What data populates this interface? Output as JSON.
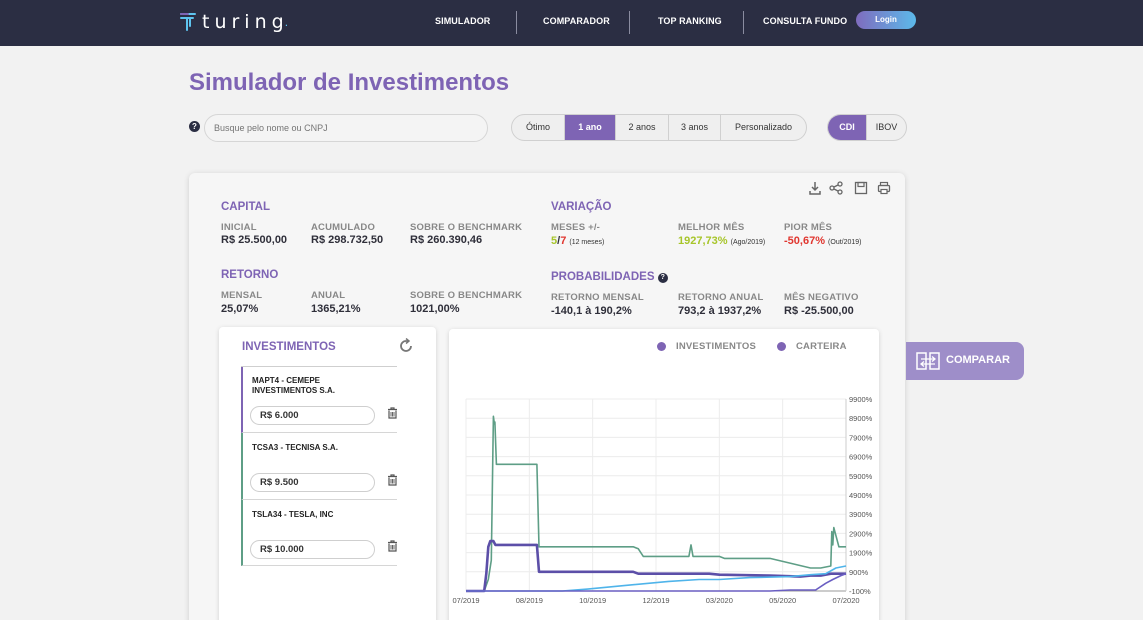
{
  "header": {
    "brand": "turing",
    "brand_dot": ".",
    "nav": [
      "SIMULADOR",
      "COMPARADOR",
      "TOP RANKING",
      "CONSULTA FUNDO"
    ],
    "login": "Login"
  },
  "page_title": "Simulador de Investimentos",
  "search": {
    "help": "?",
    "placeholder": "Busque pelo nome ou CNPJ"
  },
  "periods": {
    "items": [
      "Ótimo",
      "1 ano",
      "2 anos",
      "3 anos",
      "Personalizado"
    ],
    "selected": "1 ano"
  },
  "benchmarks": {
    "items": [
      "CDI",
      "IBOV"
    ],
    "selected": "CDI"
  },
  "capital": {
    "title": "CAPITAL",
    "inicial_label": "INICIAL",
    "inicial": "R$ 25.500,00",
    "acumulado_label": "ACUMULADO",
    "acumulado": "R$ 298.732,50",
    "benchmark_label": "SOBRE O BENCHMARK",
    "benchmark": "R$ 260.390,46"
  },
  "retorno": {
    "title": "RETORNO",
    "mensal_label": "MENSAL",
    "mensal": "25,07%",
    "anual_label": "ANUAL",
    "anual": "1365,21%",
    "benchmark_label": "SOBRE O BENCHMARK",
    "benchmark": "1021,00%"
  },
  "variacao": {
    "title": "VARIAÇÃO",
    "meses_label": "MESES +/-",
    "meses_pos": "5",
    "meses_sep": "/",
    "meses_neg": "7",
    "meses_note": "(12 meses)",
    "melhor_label": "MELHOR MÊS",
    "melhor": "1927,73%",
    "melhor_note": "(Ago/2019)",
    "pior_label": "PIOR MÊS",
    "pior": "-50,67%",
    "pior_note": "(Out/2019)"
  },
  "probabilidades": {
    "title": "PROBABILIDADES",
    "help": "?",
    "mensal_label": "RETORNO MENSAL",
    "mensal": "-140,1 à 190,2%",
    "anual_label": "RETORNO ANUAL",
    "anual": "793,2 à 1937,2%",
    "negativo_label": "MÊS NEGATIVO",
    "negativo": "R$ -25.500,00"
  },
  "investimentos": {
    "title": "INVESTIMENTOS",
    "items": [
      {
        "name": "MAPT4 - CEMEPE INVESTIMENTOS S.A.",
        "amount": "R$ 6.000"
      },
      {
        "name": "TCSA3 - TECNISA S.A.",
        "amount": "R$ 9.500"
      },
      {
        "name": "TSLA34 - TESLA, INC",
        "amount": "R$ 10.000"
      }
    ]
  },
  "compare_button": "COMPARAR",
  "colors": {
    "brand": "#7e64b4",
    "header": "#2b2e43",
    "positive": "#a7c52a",
    "negative": "#e0362f"
  },
  "chart_data": {
    "type": "line",
    "legend": [
      "INVESTIMENTOS",
      "CARTEIRA"
    ],
    "legend_placement": "top-right",
    "y_ticks": [
      "9900%",
      "8900%",
      "7900%",
      "6900%",
      "5900%",
      "4900%",
      "3900%",
      "2900%",
      "1900%",
      "900%",
      "-100%"
    ],
    "x_ticks": [
      "07/2019",
      "08/2019",
      "10/2019",
      "12/2019",
      "03/2020",
      "05/2020",
      "07/2020"
    ],
    "ylim": [
      -100,
      9900
    ],
    "grid": true,
    "series": [
      {
        "color": "#5e9e86",
        "points": [
          [
            0,
            -100
          ],
          [
            18,
            -100
          ],
          [
            22,
            500
          ],
          [
            25,
            1500
          ],
          [
            27,
            9000
          ],
          [
            28,
            8600
          ],
          [
            28.5,
            8700
          ],
          [
            30,
            6500
          ],
          [
            60,
            6500
          ],
          [
            70,
            6500
          ],
          [
            72,
            2200
          ],
          [
            95,
            2200
          ],
          [
            165,
            2200
          ],
          [
            170,
            2100
          ],
          [
            175,
            1700
          ],
          [
            220,
            1700
          ],
          [
            222,
            2300
          ],
          [
            224,
            1700
          ],
          [
            250,
            1700
          ],
          [
            255,
            1600
          ],
          [
            300,
            1600
          ],
          [
            340,
            1100
          ],
          [
            350,
            1100
          ],
          [
            360,
            1200
          ],
          [
            361,
            3000
          ],
          [
            362,
            2300
          ],
          [
            363,
            3200
          ],
          [
            368,
            2200
          ],
          [
            375,
            2200
          ]
        ]
      },
      {
        "color": "#5c4fa8",
        "points": [
          [
            0,
            -100
          ],
          [
            18,
            -100
          ],
          [
            20,
            800
          ],
          [
            22,
            2200
          ],
          [
            24,
            2500
          ],
          [
            27,
            2500
          ],
          [
            29,
            2300
          ],
          [
            60,
            2300
          ],
          [
            70,
            2300
          ],
          [
            72,
            900
          ],
          [
            95,
            900
          ],
          [
            165,
            900
          ],
          [
            170,
            800
          ],
          [
            200,
            800
          ],
          [
            240,
            800
          ],
          [
            250,
            750
          ],
          [
            300,
            700
          ],
          [
            330,
            650
          ],
          [
            340,
            700
          ],
          [
            350,
            700
          ],
          [
            360,
            800
          ],
          [
            375,
            800
          ]
        ]
      },
      {
        "color": "#4fb4ea",
        "points": [
          [
            0,
            -100
          ],
          [
            60,
            -100
          ],
          [
            70,
            -100
          ],
          [
            72,
            -100
          ],
          [
            95,
            -100
          ],
          [
            120,
            0
          ],
          [
            160,
            200
          ],
          [
            200,
            400
          ],
          [
            230,
            500
          ],
          [
            250,
            500
          ],
          [
            280,
            600
          ],
          [
            320,
            650
          ],
          [
            340,
            750
          ],
          [
            355,
            800
          ],
          [
            365,
            1100
          ],
          [
            375,
            1200
          ]
        ]
      },
      {
        "color": "#6a5ec2",
        "points": [
          [
            0,
            -100
          ],
          [
            300,
            -100
          ],
          [
            320,
            -50
          ],
          [
            345,
            -50
          ],
          [
            355,
            300
          ],
          [
            362,
            500
          ],
          [
            370,
            700
          ],
          [
            375,
            800
          ]
        ]
      }
    ]
  }
}
